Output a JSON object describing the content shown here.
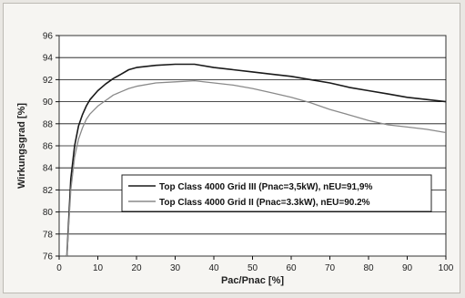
{
  "chart_data": {
    "type": "line",
    "title": "",
    "xlabel": "Pac/Pnac [%]",
    "ylabel": "Wirkungsgrad [%]",
    "xlim": [
      0,
      100
    ],
    "ylim": [
      76,
      96
    ],
    "xticks": [
      0,
      10,
      20,
      30,
      40,
      50,
      60,
      70,
      80,
      90,
      100
    ],
    "yticks": [
      76,
      78,
      80,
      82,
      84,
      86,
      88,
      90,
      92,
      94,
      96
    ],
    "grid": true,
    "legend_position": "center-right",
    "series": [
      {
        "name": "Top Class 4000 Grid III (Pnac=3,5kW), nEU=91,9%",
        "color": "#1a1a1a",
        "x": [
          2,
          3,
          4,
          5,
          6,
          7,
          8,
          10,
          12,
          14,
          16,
          18,
          20,
          25,
          30,
          35,
          40,
          45,
          50,
          55,
          60,
          65,
          70,
          75,
          80,
          85,
          90,
          95,
          100
        ],
        "y": [
          76,
          83,
          86,
          87.8,
          88.8,
          89.6,
          90.2,
          91,
          91.6,
          92.1,
          92.5,
          92.9,
          93.1,
          93.3,
          93.4,
          93.4,
          93.1,
          92.9,
          92.7,
          92.5,
          92.3,
          92,
          91.7,
          91.3,
          91,
          90.7,
          90.4,
          90.2,
          90
        ]
      },
      {
        "name": "Top Class 4000 Grid II (Pnac=3.3kW), nEU=90.2%",
        "color": "#8a8a8a",
        "x": [
          2,
          3,
          4,
          5,
          6,
          7,
          8,
          10,
          12,
          14,
          16,
          18,
          20,
          25,
          30,
          35,
          40,
          45,
          50,
          55,
          60,
          65,
          70,
          75,
          80,
          85,
          90,
          95,
          100
        ],
        "y": [
          76,
          82,
          85,
          86.6,
          87.6,
          88.4,
          88.9,
          89.6,
          90.1,
          90.6,
          90.9,
          91.2,
          91.4,
          91.7,
          91.8,
          91.9,
          91.7,
          91.5,
          91.2,
          90.8,
          90.4,
          89.9,
          89.3,
          88.8,
          88.3,
          87.9,
          87.7,
          87.5,
          87.2
        ]
      }
    ]
  }
}
